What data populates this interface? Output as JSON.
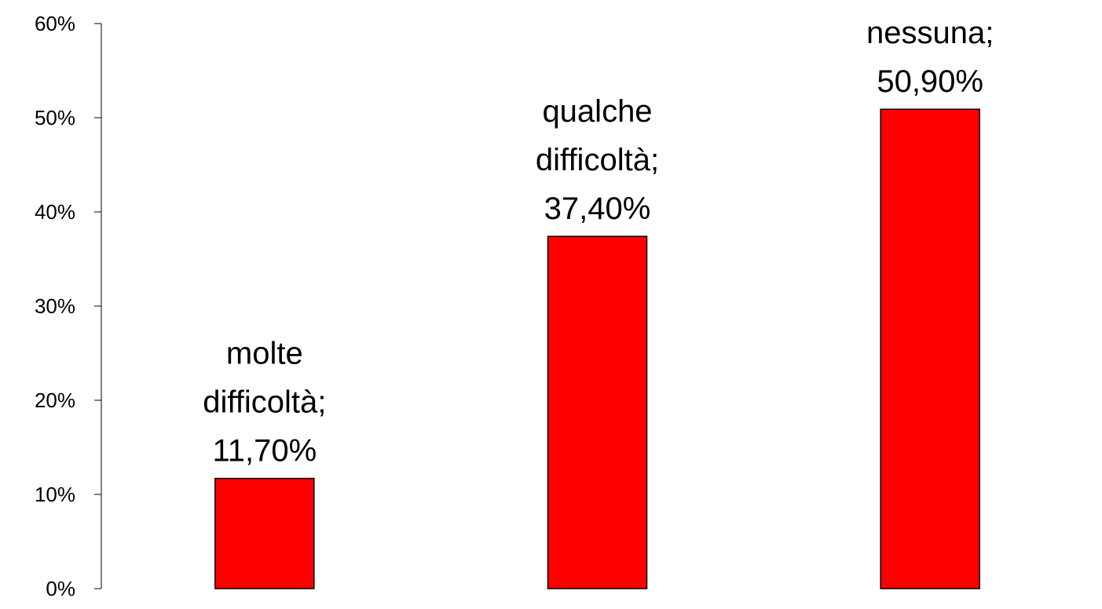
{
  "chart_data": {
    "type": "bar",
    "categories": [
      "molte difficoltà",
      "qualche difficoltà",
      "nessuna"
    ],
    "values": [
      11.7,
      37.4,
      50.9
    ],
    "data_labels": [
      [
        "molte",
        "difficoltà;",
        "11,70%"
      ],
      [
        "qualche",
        "difficoltà;",
        "37,40%"
      ],
      [
        "nessuna;",
        "50,90%"
      ]
    ],
    "y_ticks": [
      {
        "value": 0,
        "label": "0%"
      },
      {
        "value": 10,
        "label": "10%"
      },
      {
        "value": 20,
        "label": "20%"
      },
      {
        "value": 30,
        "label": "30%"
      },
      {
        "value": 40,
        "label": "40%"
      },
      {
        "value": 50,
        "label": "50%"
      },
      {
        "value": 60,
        "label": "60%"
      }
    ],
    "ylim": [
      0,
      60
    ],
    "title": "",
    "xlabel": "",
    "ylabel": "",
    "grid": false,
    "legend": "none",
    "bar_color": "#ff0000",
    "bar_border_color": "#000000"
  }
}
